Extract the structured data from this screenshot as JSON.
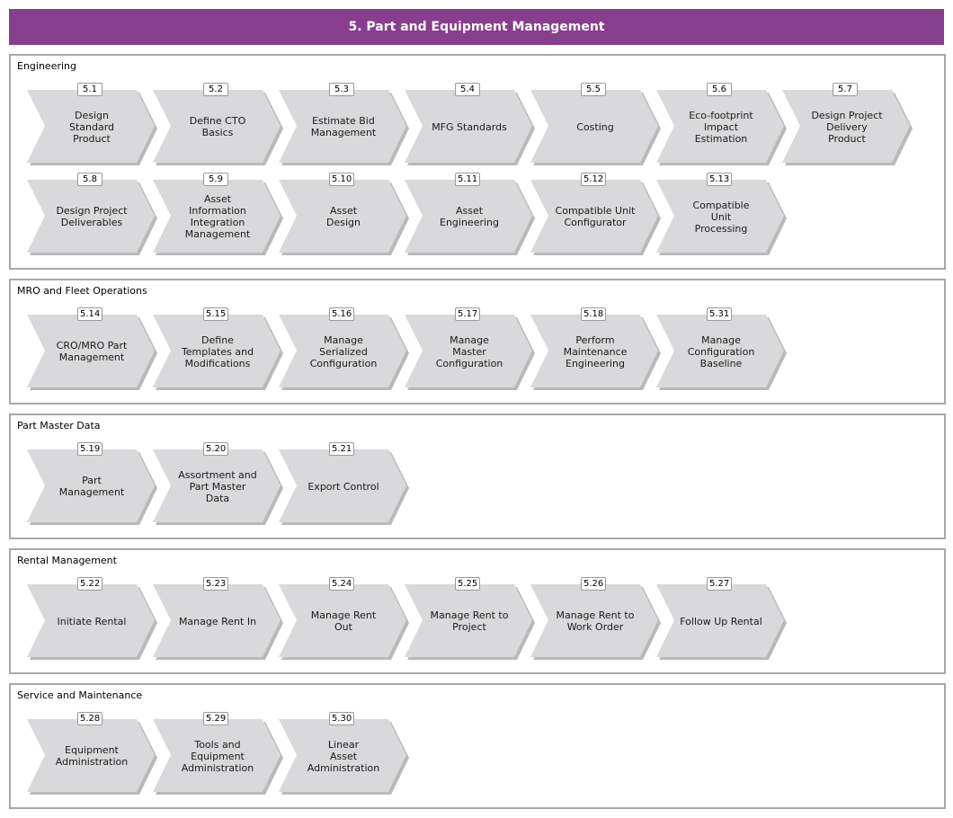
{
  "title": "5. Part and Equipment Management",
  "colors": {
    "header": "#873e8d",
    "chevron": "#d9d9db",
    "chevron_shadow": "#b9b9b9",
    "border": "#a8a8a8"
  },
  "groups": [
    {
      "name": "Engineering",
      "rows": [
        [
          {
            "num": "5.1",
            "label": "Design\nStandard\nProduct"
          },
          {
            "num": "5.2",
            "label": "Define CTO\nBasics"
          },
          {
            "num": "5.3",
            "label": "Estimate Bid\nManagement"
          },
          {
            "num": "5.4",
            "label": "MFG Standards"
          },
          {
            "num": "5.5",
            "label": "Costing"
          },
          {
            "num": "5.6",
            "label": "Eco-footprint\nImpact\nEstimation"
          },
          {
            "num": "5.7",
            "label": "Design Project\nDelivery\nProduct"
          }
        ],
        [
          {
            "num": "5.8",
            "label": "Design Project\nDeliverables"
          },
          {
            "num": "5.9",
            "label": "Asset Information\nIntegration\nManagement"
          },
          {
            "num": "5.10",
            "label": "Asset\nDesign"
          },
          {
            "num": "5.11",
            "label": "Asset\nEngineering"
          },
          {
            "num": "5.12",
            "label": "Compatible Unit\nConfigurator"
          },
          {
            "num": "5.13",
            "label": "Compatible\nUnit\nProcessing"
          }
        ]
      ]
    },
    {
      "name": "MRO and Fleet Operations",
      "rows": [
        [
          {
            "num": "5.14",
            "label": "CRO/MRO Part\nManagement"
          },
          {
            "num": "5.15",
            "label": "Define\nTemplates and\nModifications"
          },
          {
            "num": "5.16",
            "label": "Manage\nSerialized\nConfiguration"
          },
          {
            "num": "5.17",
            "label": "Manage\nMaster\nConfiguration"
          },
          {
            "num": "5.18",
            "label": "Perform\nMaintenance\nEngineering"
          },
          {
            "num": "5.31",
            "label": "Manage\nConfiguration\nBaseline"
          }
        ]
      ]
    },
    {
      "name": "Part Master Data",
      "rows": [
        [
          {
            "num": "5.19",
            "label": "Part\nManagement"
          },
          {
            "num": "5.20",
            "label": "Assortment and\nPart Master\nData"
          },
          {
            "num": "5.21",
            "label": "Export Control"
          }
        ]
      ]
    },
    {
      "name": "Rental Management",
      "rows": [
        [
          {
            "num": "5.22",
            "label": "Initiate Rental"
          },
          {
            "num": "5.23",
            "label": "Manage Rent In"
          },
          {
            "num": "5.24",
            "label": "Manage Rent\nOut"
          },
          {
            "num": "5.25",
            "label": "Manage Rent to\nProject"
          },
          {
            "num": "5.26",
            "label": "Manage Rent to\nWork Order"
          },
          {
            "num": "5.27",
            "label": "Follow Up Rental"
          }
        ]
      ]
    },
    {
      "name": "Service and Maintenance",
      "rows": [
        [
          {
            "num": "5.28",
            "label": "Equipment\nAdministration"
          },
          {
            "num": "5.29",
            "label": "Tools and\nEquipment\nAdministration"
          },
          {
            "num": "5.30",
            "label": "Linear\nAsset\nAdministration"
          }
        ]
      ]
    }
  ]
}
